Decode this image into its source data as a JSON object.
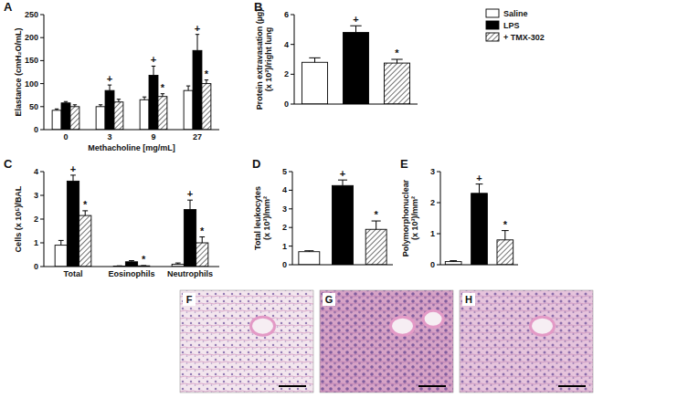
{
  "chart_data": [
    {
      "type": "bar",
      "panel": "A",
      "ylabel": "Elastance (cmH₂O/mL)",
      "xlabel": "Methacholine [mg/mL]",
      "categories": [
        "0",
        "3",
        "9",
        "27"
      ],
      "ylim": [
        0,
        250
      ],
      "yticks": [
        0,
        50,
        100,
        150,
        200,
        250
      ],
      "series": [
        {
          "color": "#ffffff",
          "line_style": "solid",
          "values": [
            42,
            50,
            65,
            85
          ],
          "errors": [
            3,
            4,
            6,
            10
          ],
          "annotations": [
            null,
            null,
            null,
            null
          ]
        },
        {
          "color": "#000000",
          "line_style": "solid",
          "values": [
            58,
            85,
            118,
            172
          ],
          "errors": [
            3,
            12,
            20,
            35
          ],
          "annotations": [
            null,
            "+",
            "+",
            "+"
          ]
        },
        {
          "color": "#333333",
          "line_style": "hatched",
          "values": [
            50,
            60,
            72,
            100
          ],
          "errors": [
            4,
            6,
            6,
            8
          ],
          "annotations": [
            null,
            null,
            "*",
            "*"
          ]
        }
      ]
    },
    {
      "type": "bar",
      "panel": "B",
      "ylabel": [
        "Protein extravasation (µg)",
        "(x 10³)/right lung"
      ],
      "categories": [
        null
      ],
      "ylim": [
        0,
        6
      ],
      "yticks": [
        0,
        2,
        4,
        6
      ],
      "legend": "right",
      "series": [
        {
          "name": "Saline",
          "color": "#ffffff",
          "line_style": "solid",
          "values": [
            2.8
          ],
          "errors": [
            0.3
          ],
          "annotations": [
            null
          ]
        },
        {
          "name": "LPS",
          "color": "#000000",
          "line_style": "solid",
          "values": [
            4.8
          ],
          "errors": [
            0.45
          ],
          "annotations": [
            "+"
          ]
        },
        {
          "name": "+ TMX-302",
          "color": "#333333",
          "line_style": "hatched",
          "values": [
            2.75
          ],
          "errors": [
            0.25
          ],
          "annotations": [
            "*"
          ]
        }
      ]
    },
    {
      "type": "bar",
      "panel": "C",
      "ylabel": "Cells (x 10⁵)/BAL",
      "categories": [
        "Total",
        "Eosinophils",
        "Neutrophils"
      ],
      "ylim": [
        0,
        4
      ],
      "yticks": [
        0,
        1,
        2,
        3,
        4
      ],
      "series": [
        {
          "color": "#ffffff",
          "line_style": "solid",
          "values": [
            0.9,
            0.02,
            0.1
          ],
          "errors": [
            0.2,
            0.01,
            0.05
          ],
          "annotations": [
            null,
            null,
            null
          ]
        },
        {
          "color": "#000000",
          "line_style": "solid",
          "values": [
            3.6,
            0.2,
            2.4
          ],
          "errors": [
            0.25,
            0.05,
            0.4
          ],
          "annotations": [
            "+",
            null,
            "+"
          ]
        },
        {
          "color": "#333333",
          "line_style": "hatched",
          "values": [
            2.15,
            0.03,
            1.0
          ],
          "errors": [
            0.2,
            0.01,
            0.25
          ],
          "annotations": [
            "*",
            "*",
            "*"
          ]
        }
      ]
    },
    {
      "type": "bar",
      "panel": "D",
      "ylabel": [
        "Total leukocytes",
        "(x 10³)/mm²"
      ],
      "categories": [
        null
      ],
      "ylim": [
        0,
        5
      ],
      "yticks": [
        0,
        1,
        2,
        3,
        4,
        5
      ],
      "series": [
        {
          "color": "#ffffff",
          "line_style": "solid",
          "values": [
            0.7
          ],
          "errors": [
            0.05
          ],
          "annotations": [
            null
          ]
        },
        {
          "color": "#000000",
          "line_style": "solid",
          "values": [
            4.25
          ],
          "errors": [
            0.3
          ],
          "annotations": [
            "+"
          ]
        },
        {
          "color": "#333333",
          "line_style": "hatched",
          "values": [
            1.9
          ],
          "errors": [
            0.45
          ],
          "annotations": [
            "*"
          ]
        }
      ]
    },
    {
      "type": "bar",
      "panel": "E",
      "ylabel": [
        "Polymorphonuclear",
        "(x 10³)/mm²"
      ],
      "categories": [
        null
      ],
      "ylim": [
        0,
        3
      ],
      "yticks": [
        0,
        1,
        2,
        3
      ],
      "series": [
        {
          "color": "#ffffff",
          "line_style": "solid",
          "values": [
            0.1
          ],
          "errors": [
            0.03
          ],
          "annotations": [
            null
          ]
        },
        {
          "color": "#000000",
          "line_style": "solid",
          "values": [
            2.3
          ],
          "errors": [
            0.3
          ],
          "annotations": [
            "+"
          ]
        },
        {
          "color": "#333333",
          "line_style": "hatched",
          "values": [
            0.8
          ],
          "errors": [
            0.3
          ],
          "annotations": [
            "*"
          ]
        }
      ]
    }
  ],
  "images": [
    {
      "panel": "F"
    },
    {
      "panel": "G"
    },
    {
      "panel": "H"
    }
  ]
}
